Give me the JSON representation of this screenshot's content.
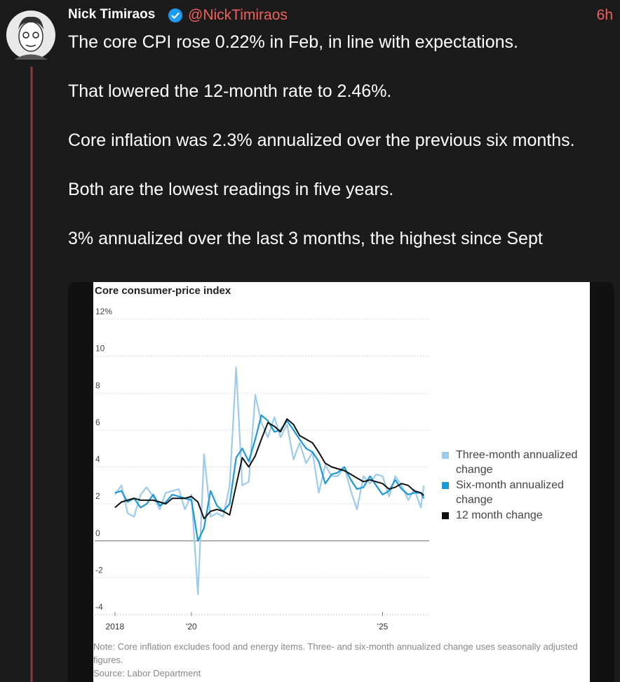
{
  "tweet": {
    "author": "Nick Timiraos",
    "handle": "@NickTimiraos",
    "time": "6h",
    "paragraphs": [
      "The core CPI rose 0.22% in Feb, in line with expectations.",
      "That lowered the 12-month rate to 2.46%.",
      "Core inflation was 2.3% annualized over the previous six months.",
      "Both are the lowest readings in five years.",
      "3% annualized over the last 3 months, the highest since Sept"
    ]
  },
  "chart_data": {
    "type": "line",
    "title": "Core consumer-price index",
    "note": "Note: Core inflation excludes food and energy items. Three- and six-month annualized change uses seasonally adjusted figures.",
    "source": "Source: Labor Department",
    "x": [
      2018,
      2018.17,
      2018.33,
      2018.5,
      2018.67,
      2018.83,
      2019,
      2019.17,
      2019.33,
      2019.5,
      2019.67,
      2019.83,
      2020,
      2020.17,
      2020.33,
      2020.5,
      2020.67,
      2020.83,
      2021,
      2021.17,
      2021.33,
      2021.5,
      2021.67,
      2021.83,
      2022,
      2022.17,
      2022.33,
      2022.5,
      2022.67,
      2022.83,
      2023,
      2023.17,
      2023.33,
      2023.5,
      2023.67,
      2023.83,
      2024,
      2024.17,
      2024.33,
      2024.5,
      2024.67,
      2024.83,
      2025,
      2025.17,
      2025.33,
      2025.5,
      2025.67,
      2025.83,
      2026,
      2026.08
    ],
    "series": [
      {
        "name": "Three-month annualized change",
        "color": "#9ccbec",
        "values": [
          2.5,
          3.0,
          1.5,
          1.3,
          2.5,
          2.9,
          2.4,
          1.7,
          2.6,
          2.7,
          2.8,
          1.7,
          2.5,
          -2.9,
          4.7,
          1.3,
          1.5,
          1.3,
          3.0,
          9.4,
          3.0,
          3.2,
          7.9,
          6.4,
          5.6,
          6.7,
          5.6,
          6.3,
          4.4,
          5.3,
          4.2,
          4.8,
          2.6,
          4.1,
          3.5,
          3.5,
          4.0,
          2.7,
          1.7,
          3.5,
          3.1,
          3.6,
          3.5,
          2.4,
          3.5,
          3.0,
          2.2,
          2.8,
          1.8,
          3.0
        ]
      },
      {
        "name": "Six-month annualized change",
        "color": "#1b9ad6",
        "values": [
          2.6,
          2.7,
          2.1,
          2.3,
          1.8,
          2.0,
          2.5,
          1.9,
          2.1,
          2.5,
          2.4,
          2.3,
          2.2,
          0.0,
          0.7,
          2.7,
          1.9,
          1.6,
          2.0,
          4.5,
          5.0,
          4.3,
          5.5,
          6.8,
          6.5,
          5.9,
          6.0,
          6.5,
          6.0,
          5.5,
          5.0,
          4.8,
          4.3,
          3.1,
          3.6,
          3.7,
          4.0,
          3.3,
          2.8,
          2.9,
          3.5,
          3.0,
          2.5,
          2.7,
          3.3,
          2.8,
          2.5,
          2.6,
          2.6,
          2.3
        ]
      },
      {
        "name": "12 month change",
        "color": "#111111",
        "values": [
          1.8,
          2.1,
          2.2,
          2.3,
          2.2,
          2.2,
          2.2,
          2.1,
          2.0,
          2.3,
          2.3,
          2.3,
          2.4,
          2.1,
          1.2,
          1.6,
          1.7,
          1.6,
          1.4,
          3.0,
          4.5,
          4.0,
          4.6,
          5.5,
          6.4,
          6.2,
          5.9,
          6.6,
          6.3,
          5.7,
          5.5,
          5.3,
          4.8,
          4.2,
          4.0,
          3.9,
          3.8,
          3.6,
          3.4,
          3.2,
          3.3,
          3.2,
          3.1,
          2.8,
          2.9,
          3.1,
          3.0,
          2.7,
          2.6,
          2.46
        ]
      }
    ],
    "xlim": [
      2017.47,
      2026.22
    ],
    "xticks": [
      2018,
      {
        "value": 2020,
        "label": "'20"
      },
      {
        "value": 2025,
        "label": "'25"
      }
    ],
    "ylim": [
      -4,
      12
    ],
    "yticks": [
      -4,
      -2,
      0,
      2,
      4,
      6,
      8,
      10,
      {
        "value": 12,
        "label": "12%"
      }
    ],
    "grid": true
  }
}
